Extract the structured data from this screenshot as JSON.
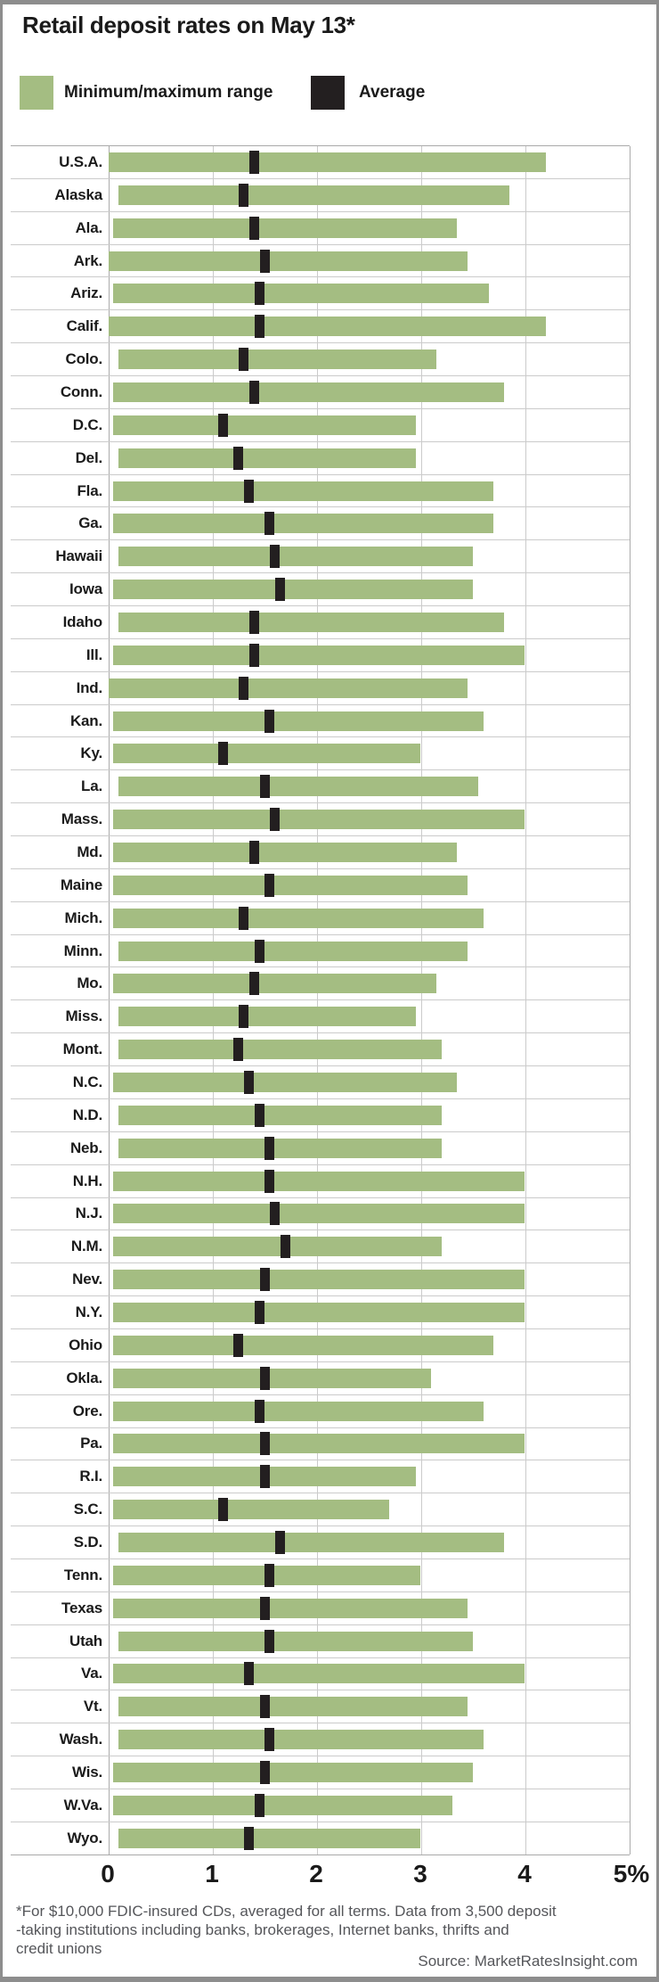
{
  "title": "Retail deposit rates on May 13*",
  "legend": {
    "range_label": "Minimum/maximum range",
    "average_label": "Average"
  },
  "colors": {
    "range": "#a4bd82",
    "average": "#231f20",
    "grid": "#cbcbcb",
    "axis_line": "#ababab",
    "frame": "#8d8d8d",
    "text": "#1a1a1a",
    "footnote_text": "#55565a"
  },
  "footnote": "*For $10,000 FDIC-insured CDs, averaged for all terms. Data from 3,500 deposit\n-taking institutions including banks, brokerages, Internet banks, thrifts and\ncredit unions",
  "source": "Source: MarketRatesInsight.com",
  "chart_data": {
    "type": "bar",
    "subtype": "horizontal-range-bars-with-average-marker",
    "title": "Retail deposit rates on May 13*",
    "xlabel": "",
    "ylabel": "",
    "unit": "percent",
    "xlim": [
      0,
      5
    ],
    "grid": true,
    "legend_position": "top",
    "axis_ticks": [
      "0",
      "1",
      "2",
      "3",
      "4",
      "5%"
    ],
    "series_meaning": {
      "bar": "Minimum/maximum range",
      "marker": "Average"
    },
    "rows": [
      {
        "label": "U.S.A.",
        "min": 0.0,
        "max": 4.2,
        "avg": 1.4
      },
      {
        "label": "Alaska",
        "min": 0.1,
        "max": 3.85,
        "avg": 1.3
      },
      {
        "label": "Ala.",
        "min": 0.05,
        "max": 3.35,
        "avg": 1.4
      },
      {
        "label": "Ark.",
        "min": 0.0,
        "max": 3.45,
        "avg": 1.5
      },
      {
        "label": "Ariz.",
        "min": 0.05,
        "max": 3.65,
        "avg": 1.45
      },
      {
        "label": "Calif.",
        "min": 0.0,
        "max": 4.2,
        "avg": 1.45
      },
      {
        "label": "Colo.",
        "min": 0.1,
        "max": 3.15,
        "avg": 1.3
      },
      {
        "label": "Conn.",
        "min": 0.05,
        "max": 3.8,
        "avg": 1.4
      },
      {
        "label": "D.C.",
        "min": 0.05,
        "max": 2.95,
        "avg": 1.1
      },
      {
        "label": "Del.",
        "min": 0.1,
        "max": 2.95,
        "avg": 1.25
      },
      {
        "label": "Fla.",
        "min": 0.05,
        "max": 3.7,
        "avg": 1.35
      },
      {
        "label": "Ga.",
        "min": 0.05,
        "max": 3.7,
        "avg": 1.55
      },
      {
        "label": "Hawaii",
        "min": 0.1,
        "max": 3.5,
        "avg": 1.6
      },
      {
        "label": "Iowa",
        "min": 0.05,
        "max": 3.5,
        "avg": 1.65
      },
      {
        "label": "Idaho",
        "min": 0.1,
        "max": 3.8,
        "avg": 1.4
      },
      {
        "label": "Ill.",
        "min": 0.05,
        "max": 4.0,
        "avg": 1.4
      },
      {
        "label": "Ind.",
        "min": 0.0,
        "max": 3.45,
        "avg": 1.3
      },
      {
        "label": "Kan.",
        "min": 0.05,
        "max": 3.6,
        "avg": 1.55
      },
      {
        "label": "Ky.",
        "min": 0.05,
        "max": 3.0,
        "avg": 1.1
      },
      {
        "label": "La.",
        "min": 0.1,
        "max": 3.55,
        "avg": 1.5
      },
      {
        "label": "Mass.",
        "min": 0.05,
        "max": 4.0,
        "avg": 1.6
      },
      {
        "label": "Md.",
        "min": 0.05,
        "max": 3.35,
        "avg": 1.4
      },
      {
        "label": "Maine",
        "min": 0.05,
        "max": 3.45,
        "avg": 1.55
      },
      {
        "label": "Mich.",
        "min": 0.05,
        "max": 3.6,
        "avg": 1.3
      },
      {
        "label": "Minn.",
        "min": 0.1,
        "max": 3.45,
        "avg": 1.45
      },
      {
        "label": "Mo.",
        "min": 0.05,
        "max": 3.15,
        "avg": 1.4
      },
      {
        "label": "Miss.",
        "min": 0.1,
        "max": 2.95,
        "avg": 1.3
      },
      {
        "label": "Mont.",
        "min": 0.1,
        "max": 3.2,
        "avg": 1.25
      },
      {
        "label": "N.C.",
        "min": 0.05,
        "max": 3.35,
        "avg": 1.35
      },
      {
        "label": "N.D.",
        "min": 0.1,
        "max": 3.2,
        "avg": 1.45
      },
      {
        "label": "Neb.",
        "min": 0.1,
        "max": 3.2,
        "avg": 1.55
      },
      {
        "label": "N.H.",
        "min": 0.05,
        "max": 4.0,
        "avg": 1.55
      },
      {
        "label": "N.J.",
        "min": 0.05,
        "max": 4.0,
        "avg": 1.6
      },
      {
        "label": "N.M.",
        "min": 0.05,
        "max": 3.2,
        "avg": 1.7
      },
      {
        "label": "Nev.",
        "min": 0.05,
        "max": 4.0,
        "avg": 1.5
      },
      {
        "label": "N.Y.",
        "min": 0.05,
        "max": 4.0,
        "avg": 1.45
      },
      {
        "label": "Ohio",
        "min": 0.05,
        "max": 3.7,
        "avg": 1.25
      },
      {
        "label": "Okla.",
        "min": 0.05,
        "max": 3.1,
        "avg": 1.5
      },
      {
        "label": "Ore.",
        "min": 0.05,
        "max": 3.6,
        "avg": 1.45
      },
      {
        "label": "Pa.",
        "min": 0.05,
        "max": 4.0,
        "avg": 1.5
      },
      {
        "label": "R.I.",
        "min": 0.05,
        "max": 2.95,
        "avg": 1.5
      },
      {
        "label": "S.C.",
        "min": 0.05,
        "max": 2.7,
        "avg": 1.1
      },
      {
        "label": "S.D.",
        "min": 0.1,
        "max": 3.8,
        "avg": 1.65
      },
      {
        "label": "Tenn.",
        "min": 0.05,
        "max": 3.0,
        "avg": 1.55
      },
      {
        "label": "Texas",
        "min": 0.05,
        "max": 3.45,
        "avg": 1.5
      },
      {
        "label": "Utah",
        "min": 0.1,
        "max": 3.5,
        "avg": 1.55
      },
      {
        "label": "Va.",
        "min": 0.05,
        "max": 4.0,
        "avg": 1.35
      },
      {
        "label": "Vt.",
        "min": 0.1,
        "max": 3.45,
        "avg": 1.5
      },
      {
        "label": "Wash.",
        "min": 0.1,
        "max": 3.6,
        "avg": 1.55
      },
      {
        "label": "Wis.",
        "min": 0.05,
        "max": 3.5,
        "avg": 1.5
      },
      {
        "label": "W.Va.",
        "min": 0.05,
        "max": 3.3,
        "avg": 1.45
      },
      {
        "label": "Wyo.",
        "min": 0.1,
        "max": 3.0,
        "avg": 1.35
      }
    ]
  }
}
